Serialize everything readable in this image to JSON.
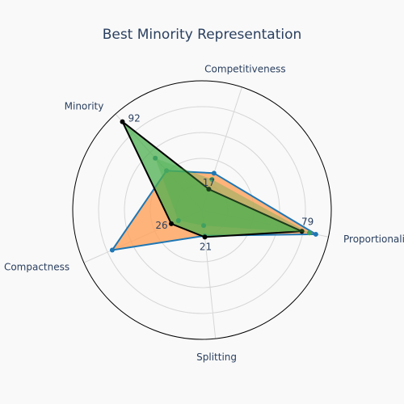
{
  "chart_data": {
    "type": "radar",
    "title": "Best Minority Representation",
    "axes": [
      "Competitiveness",
      "Proportionality",
      "Splitting",
      "Compactness",
      "Minority"
    ],
    "rmax": 100,
    "gridlines": [
      20,
      40,
      60,
      80,
      100
    ],
    "series": [
      {
        "values": [
          30,
          90,
          20,
          76,
          41
        ],
        "fill": "#ffa15a",
        "stroke": "#1f77b4",
        "marker": "#1f77b4"
      },
      {
        "values": [
          17,
          79,
          21,
          26,
          92
        ],
        "fill": "#4caf50",
        "stroke": "#000000",
        "marker": "#000000",
        "label_values": [
          "17",
          "79",
          "21",
          "26",
          "92"
        ]
      },
      {
        "values": [
          25,
          85,
          12,
          20,
          54
        ],
        "fill": "#4caf50",
        "stroke": "none",
        "marker": "#40a060"
      }
    ]
  }
}
